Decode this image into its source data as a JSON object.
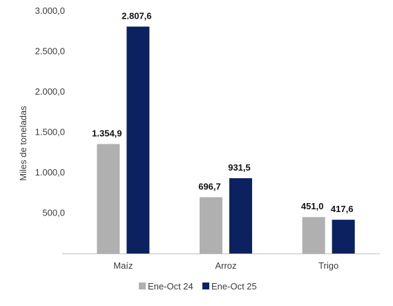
{
  "chart_data": {
    "type": "bar",
    "categories": [
      "Maíz",
      "Arroz",
      "Trigo"
    ],
    "series": [
      {
        "name": "Ene-Oct 24",
        "values": [
          1354.9,
          696.7,
          451.0
        ],
        "labels": [
          "1.354,9",
          "696,7",
          "451,0"
        ],
        "color": "#b0b0b0"
      },
      {
        "name": "Ene-Oct 25",
        "values": [
          2807.6,
          931.5,
          417.6
        ],
        "labels": [
          "2.807,6",
          "931,5",
          "417,6"
        ],
        "color": "#0b2160"
      }
    ],
    "ylabel": "Miles de toneladas",
    "ylim": [
      0,
      3000
    ],
    "yticks": [
      {
        "value": 0,
        "label": "-"
      },
      {
        "value": 500,
        "label": "500,0"
      },
      {
        "value": 1000,
        "label": "1.000,0"
      },
      {
        "value": 1500,
        "label": "1.500,0"
      },
      {
        "value": 2000,
        "label": "2.000,0"
      },
      {
        "value": 2500,
        "label": "2.500,0"
      },
      {
        "value": 3000,
        "label": "3.000,0"
      }
    ],
    "grid": false,
    "legend": "bottom"
  }
}
